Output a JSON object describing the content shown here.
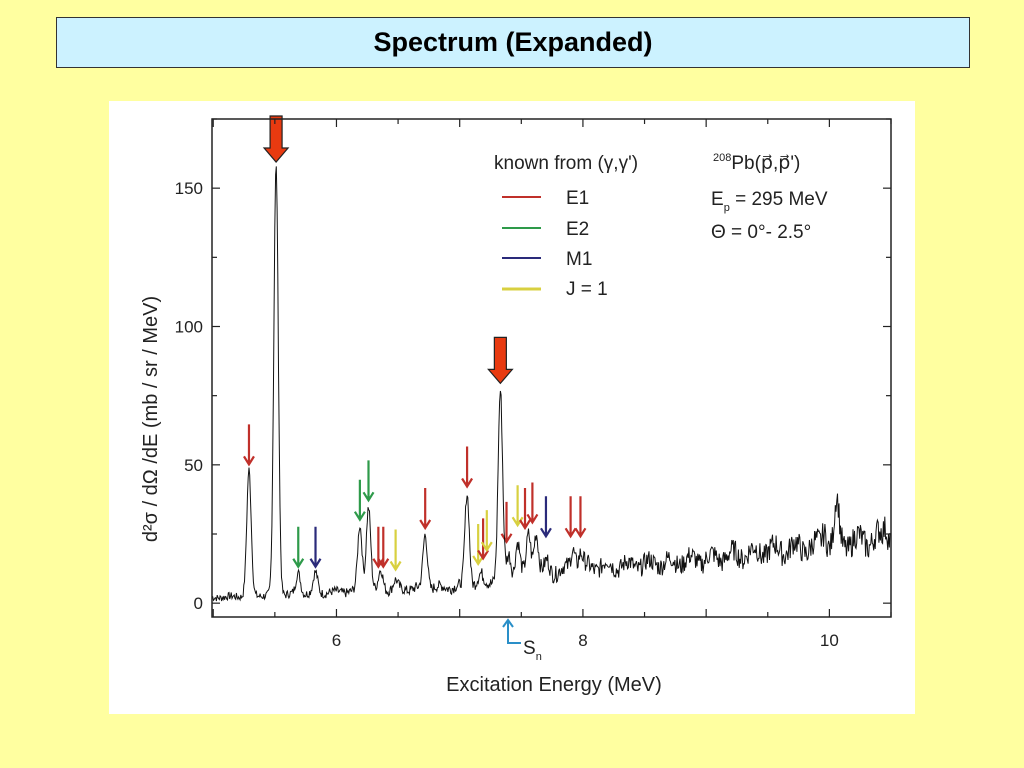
{
  "slide": {
    "title": "Spectrum (Expanded)"
  },
  "chart_data": {
    "type": "line",
    "xlabel": "Excitation Energy (MeV)",
    "ylabel": "d²σ / dΩ /dE (mb / sr / MeV)",
    "xlim": [
      4.99,
      10.5
    ],
    "ylim": [
      -5,
      175
    ],
    "x_ticks": [
      6,
      8,
      10
    ],
    "y_ticks": [
      0,
      50,
      100,
      150
    ],
    "grid": false,
    "legend": {
      "title": "known from (γ,γ')",
      "placement": "top-right",
      "items": [
        {
          "label": "E1",
          "color": "#C0302A"
        },
        {
          "label": "E2",
          "color": "#2E9A4A"
        },
        {
          "label": "M1",
          "color": "#2A2A7A"
        },
        {
          "label": "J = 1",
          "color": "#D8D040"
        }
      ]
    },
    "annotation": {
      "reaction_mass": "208",
      "reaction_element": "Pb",
      "reaction_rest": "(p⃗,p⃗')",
      "beam_E": "E",
      "beam_sub": "p",
      "beam_rest": " = 295 MeV",
      "angle": "Θ = 0°- 2.5°",
      "sn_main": "S",
      "sn_sub": "n"
    },
    "spectrum": {
      "baseline_points": [
        [
          4.99,
          2
        ],
        [
          5.5,
          3
        ],
        [
          6.0,
          4
        ],
        [
          7.0,
          6
        ],
        [
          7.5,
          10
        ],
        [
          8.0,
          13
        ],
        [
          8.5,
          14
        ],
        [
          9.0,
          16
        ],
        [
          9.5,
          19
        ],
        [
          10.0,
          21
        ],
        [
          10.5,
          24
        ]
      ],
      "peaks": [
        {
          "x": 5.29,
          "y": 48
        },
        {
          "x": 5.51,
          "y": 158
        },
        {
          "x": 5.69,
          "y": 11
        },
        {
          "x": 5.83,
          "y": 11
        },
        {
          "x": 6.19,
          "y": 28
        },
        {
          "x": 6.26,
          "y": 35
        },
        {
          "x": 6.36,
          "y": 12
        },
        {
          "x": 6.48,
          "y": 8
        },
        {
          "x": 6.72,
          "y": 25
        },
        {
          "x": 7.06,
          "y": 40
        },
        {
          "x": 7.17,
          "y": 10
        },
        {
          "x": 7.33,
          "y": 76
        },
        {
          "x": 7.4,
          "y": 18
        },
        {
          "x": 7.47,
          "y": 22
        },
        {
          "x": 7.56,
          "y": 25
        },
        {
          "x": 7.62,
          "y": 26
        },
        {
          "x": 7.71,
          "y": 15
        },
        {
          "x": 7.92,
          "y": 20
        },
        {
          "x": 7.98,
          "y": 18
        },
        {
          "x": 8.2,
          "y": 14
        },
        {
          "x": 8.6,
          "y": 15
        },
        {
          "x": 9.5,
          "y": 16
        },
        {
          "x": 9.96,
          "y": 27
        },
        {
          "x": 10.06,
          "y": 36
        },
        {
          "x": 10.46,
          "y": 28
        }
      ]
    },
    "marker_arrows": [
      {
        "type": "E1",
        "x": 5.29,
        "y": 48
      },
      {
        "type": "E2",
        "x": 5.69,
        "y": 11
      },
      {
        "type": "M1",
        "x": 5.83,
        "y": 11
      },
      {
        "type": "E2",
        "x": 6.19,
        "y": 28
      },
      {
        "type": "E2",
        "x": 6.26,
        "y": 35
      },
      {
        "type": "E1",
        "x": 6.34,
        "y": 11
      },
      {
        "type": "E1",
        "x": 6.38,
        "y": 11
      },
      {
        "type": "J = 1",
        "x": 6.48,
        "y": 10
      },
      {
        "type": "E1",
        "x": 6.72,
        "y": 25
      },
      {
        "type": "E1",
        "x": 7.06,
        "y": 40
      },
      {
        "type": "J = 1",
        "x": 7.15,
        "y": 12
      },
      {
        "type": "E1",
        "x": 7.19,
        "y": 14
      },
      {
        "type": "J = 1",
        "x": 7.22,
        "y": 17
      },
      {
        "type": "E1",
        "x": 7.38,
        "y": 20
      },
      {
        "type": "J = 1",
        "x": 7.47,
        "y": 26
      },
      {
        "type": "E1",
        "x": 7.53,
        "y": 25
      },
      {
        "type": "E1",
        "x": 7.59,
        "y": 27
      },
      {
        "type": "M1",
        "x": 7.7,
        "y": 22
      },
      {
        "type": "E1",
        "x": 7.9,
        "y": 22
      },
      {
        "type": "E1",
        "x": 7.98,
        "y": 22
      }
    ],
    "highlight_arrows": [
      {
        "x": 5.51,
        "y": 158
      },
      {
        "x": 7.33,
        "y": 78
      }
    ]
  }
}
